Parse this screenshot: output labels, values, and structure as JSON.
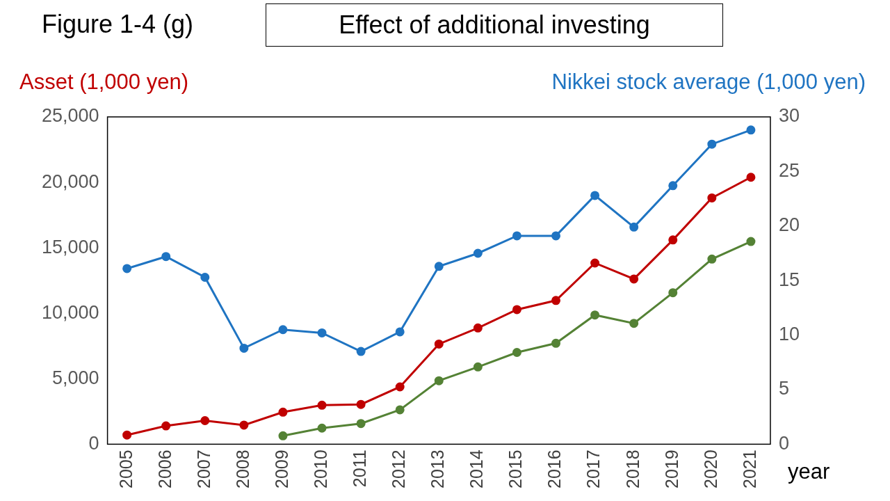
{
  "chart_data": {
    "type": "line",
    "figure_label": "Figure 1-4 (g)",
    "title": "Effect of additional investing",
    "y_label": "Asset (1,000 yen)",
    "y2_label": "Nikkei stock average (1,000 yen)",
    "x_label": "year",
    "categories": [
      "2005",
      "2006",
      "2007",
      "2008",
      "2009",
      "2010",
      "2011",
      "2012",
      "2013",
      "2014",
      "2015",
      "2016",
      "2017",
      "2018",
      "2019",
      "2020",
      "2021"
    ],
    "series": [
      {
        "color": "#c00000",
        "axis": "y",
        "values": [
          700,
          1400,
          1800,
          1460,
          2450,
          2980,
          3040,
          4380,
          7650,
          8880,
          10280,
          10980,
          13840,
          12620,
          15600,
          18810,
          20390
        ]
      },
      {
        "color": "#548235",
        "axis": "y",
        "values": [
          null,
          null,
          null,
          null,
          640,
          1230,
          1580,
          2630,
          4850,
          5900,
          7010,
          7710,
          9870,
          9230,
          11570,
          14140,
          15480
        ]
      },
      {
        "color": "#1f74c2",
        "axis": "y2",
        "values": [
          16.1,
          17.2,
          15.3,
          8.8,
          10.5,
          10.2,
          8.5,
          10.3,
          16.3,
          17.5,
          19.1,
          19.1,
          22.8,
          19.9,
          23.7,
          27.5,
          28.8
        ]
      }
    ],
    "ylim": [
      0,
      25000
    ],
    "yticks": [
      0,
      {
        "value": 5000,
        "label": "5,000"
      },
      {
        "value": 10000,
        "label": "10,000"
      },
      {
        "value": 15000,
        "label": "15,000"
      },
      {
        "value": 20000,
        "label": "20,000"
      },
      {
        "value": 25000,
        "label": "25,000"
      }
    ],
    "y2lim": [
      0,
      30
    ],
    "y2ticks": [
      0,
      5,
      10,
      15,
      20,
      25,
      30
    ],
    "grid": false,
    "marker": "circle"
  }
}
